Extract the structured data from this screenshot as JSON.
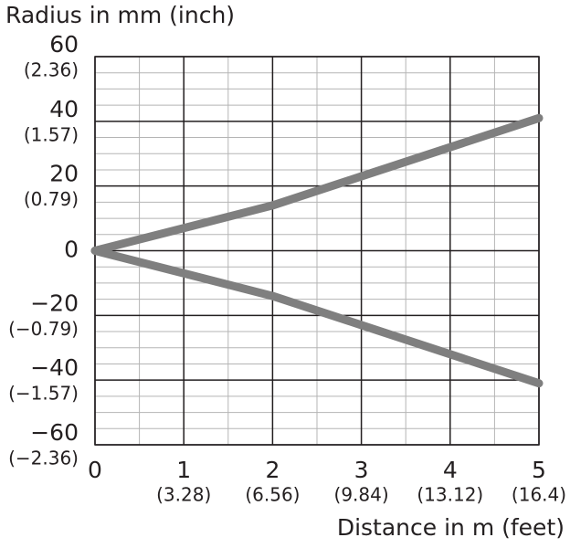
{
  "chart_data": {
    "type": "line",
    "y_label": "Radius in mm (inch)",
    "x_label": "Distance in m (feet)",
    "x": [
      0,
      1,
      2,
      3,
      4,
      5
    ],
    "series": [
      {
        "color": "#7f7f7f",
        "values": [
          0,
          7,
          14,
          23,
          32,
          41
        ]
      },
      {
        "color": "#7f7f7f",
        "values": [
          0,
          -7,
          -14,
          -23,
          -32,
          -41
        ]
      }
    ],
    "xlim": [
      0,
      5
    ],
    "ylim": [
      -60,
      60
    ],
    "xticks": [
      0,
      1,
      2,
      3,
      4,
      5
    ],
    "xtick_secondary_labels": [
      null,
      "(3.28)",
      "(6.56)",
      "(9.84)",
      "(13.12)",
      "(16.4)"
    ],
    "yticks": [
      {
        "value": -60,
        "label": "−60"
      },
      {
        "value": -40,
        "label": "−40"
      },
      {
        "value": -20,
        "label": "−20"
      },
      0,
      20,
      40,
      60
    ],
    "ytick_secondary_labels": [
      "(−2.36)",
      "(−1.57)",
      "(−0.79)",
      null,
      "(0.79)",
      "(1.57)",
      "(2.36)"
    ],
    "xminorticks": [
      0.5,
      1.5,
      2.5,
      3.5,
      4.5
    ],
    "yminorticks": [
      -55,
      -50,
      -45,
      -35,
      -30,
      -25,
      -15,
      -10,
      -5,
      5,
      10,
      15,
      25,
      30,
      35,
      45,
      50,
      55
    ],
    "grid": true
  }
}
